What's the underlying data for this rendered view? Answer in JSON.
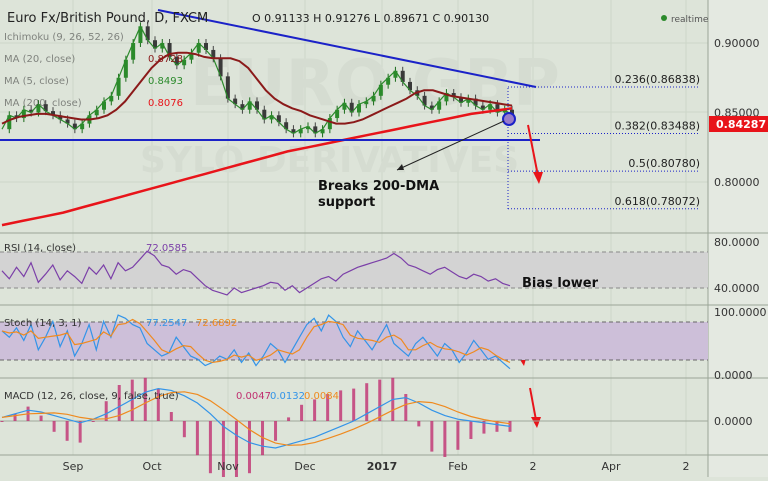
{
  "header": {
    "title": "Euro Fx/British Pound, D, FXCM",
    "ohlc": "O 0.91133  H 0.91276  L 0.89671  C 0.90130",
    "realtime_label": "realtime"
  },
  "indicators": {
    "ichimoku": "Ichimoku (9, 26, 52, 26)",
    "ma20": "MA (20, close)",
    "ma20_val": "0.8728",
    "ma5": "MA (5, close)",
    "ma5_val": "0.8493",
    "ma200": "MA (200, close)",
    "ma200_val": "0.8076"
  },
  "annotations": {
    "breaks_line1": "Breaks 200-DMA",
    "breaks_line2": "support",
    "bias": "Bias lower"
  },
  "fib_levels": [
    {
      "label": "0.236(0.86838)",
      "value": 0.86838
    },
    {
      "label": "0.382(0.83488)",
      "value": 0.83488
    },
    {
      "label": "0.5(0.80780)",
      "value": 0.8078
    },
    {
      "label": "0.618(0.78072)",
      "value": 0.78072
    }
  ],
  "rsi": {
    "label": "RSI (14, close)",
    "value": "72.0585",
    "ticks": [
      "80.0000",
      "40.0000"
    ]
  },
  "stoch": {
    "label": "Stoch (14, 3, 1)",
    "k": "77.2547",
    "d": "72.6892",
    "ticks": [
      "100.0000",
      "0.0000"
    ]
  },
  "macd": {
    "label": "MACD (12, 26, close, 9, false, true)",
    "v1": "0.0047",
    "v2": "0.0132",
    "v3": "0.0084",
    "ticks": [
      "0.0000"
    ]
  },
  "colors": {
    "price": "#2b8a2b",
    "ma20": "#8b1a1a",
    "ma200": "#e8141a",
    "trend": "#1b22c8",
    "badge": "#e8141a",
    "panel": "#dde4d9",
    "rsi_band": "#d3d3d3",
    "stoch_band": "#cdbfd9",
    "macd_line": "#3394e8",
    "macd_signal": "#ef8a1f",
    "macd_hist": "#c03070"
  },
  "chart_data": {
    "type": "line",
    "x_labels": [
      "Sep",
      "Oct",
      "Nov",
      "Dec",
      "2017",
      "Feb",
      "2",
      "Apr",
      "2"
    ],
    "y_ticks": [
      "0.90000",
      "0.85000",
      "0.80000"
    ],
    "ylim": [
      0.765,
      0.925
    ],
    "last_price": "0.84287",
    "series": [
      {
        "name": "Price",
        "values": [
          0.838,
          0.848,
          0.846,
          0.852,
          0.85,
          0.856,
          0.851,
          0.848,
          0.845,
          0.842,
          0.838,
          0.842,
          0.848,
          0.852,
          0.858,
          0.862,
          0.875,
          0.888,
          0.9,
          0.912,
          0.902,
          0.896,
          0.9,
          0.89,
          0.884,
          0.888,
          0.893,
          0.9,
          0.895,
          0.889,
          0.876,
          0.86,
          0.856,
          0.852,
          0.858,
          0.852,
          0.845,
          0.848,
          0.843,
          0.838,
          0.835,
          0.838,
          0.84,
          0.835,
          0.838,
          0.846,
          0.852,
          0.857,
          0.85,
          0.856,
          0.858,
          0.862,
          0.87,
          0.875,
          0.88,
          0.872,
          0.866,
          0.862,
          0.855,
          0.852,
          0.858,
          0.864,
          0.861,
          0.857,
          0.86,
          0.855,
          0.852,
          0.856,
          0.85,
          0.852,
          0.848
        ]
      },
      {
        "name": "MA 20",
        "values": [
          0.842,
          0.845,
          0.847,
          0.848,
          0.849,
          0.849,
          0.848,
          0.847,
          0.846,
          0.845,
          0.845,
          0.846,
          0.848,
          0.852,
          0.858,
          0.866,
          0.874,
          0.882,
          0.888,
          0.892,
          0.893,
          0.893,
          0.892,
          0.89,
          0.889,
          0.889,
          0.889,
          0.887,
          0.882,
          0.874,
          0.866,
          0.86,
          0.856,
          0.853,
          0.851,
          0.848,
          0.846,
          0.844,
          0.842,
          0.842,
          0.843,
          0.845,
          0.848,
          0.851,
          0.854,
          0.857,
          0.86,
          0.864,
          0.866,
          0.866,
          0.864,
          0.862,
          0.861,
          0.86,
          0.859,
          0.858,
          0.857,
          0.856,
          0.855
        ]
      },
      {
        "name": "MA 200",
        "values": [
          0.769,
          0.772,
          0.775,
          0.778,
          0.782,
          0.786,
          0.79,
          0.794,
          0.798,
          0.802,
          0.806,
          0.81,
          0.814,
          0.818,
          0.822,
          0.825,
          0.828,
          0.831,
          0.834,
          0.837,
          0.84,
          0.843,
          0.846,
          0.849,
          0.851,
          0.853
        ]
      }
    ]
  }
}
